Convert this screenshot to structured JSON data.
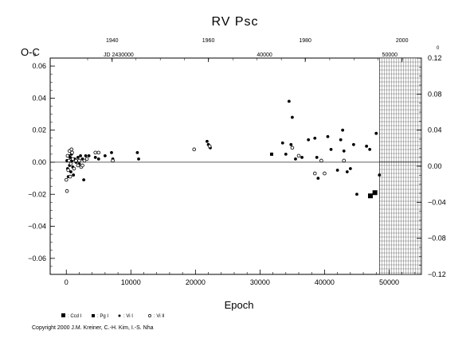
{
  "chart_data": {
    "type": "scatter",
    "title": "RV Psc",
    "ylabel": "O-C",
    "xlabel": "Epoch",
    "xlim": [
      -2500,
      55000
    ],
    "ylim": [
      -0.07,
      0.065
    ],
    "y2lim": [
      -0.12,
      0.12
    ],
    "grid": false,
    "x_ticks": [
      0,
      10000,
      20000,
      30000,
      40000,
      50000
    ],
    "x_tick_labels": [
      "0",
      "10000",
      "20000",
      "30000",
      "40000",
      "50000"
    ],
    "y_ticks": [
      -0.06,
      -0.04,
      -0.02,
      0.0,
      0.02,
      0.04,
      0.06
    ],
    "y_tick_labels": [
      "−0.06",
      "−0.04",
      "−0.02",
      "0.00",
      "0.02",
      "0.04",
      "0.06"
    ],
    "y2_ticks": [
      -0.12,
      -0.08,
      -0.04,
      0.0,
      0.04,
      0.08,
      0.12
    ],
    "y2_tick_labels": [
      "−0.12",
      "−0.08",
      "−0.04",
      "0.00",
      "0.04",
      "0.08",
      "0.12"
    ],
    "top_year_ticks": [
      {
        "label": "1940",
        "epoch": 7100
      },
      {
        "label": "1960",
        "epoch": 22000
      },
      {
        "label": "1980",
        "epoch": 37000
      },
      {
        "label": "2000",
        "epoch": 52000
      }
    ],
    "top_jd_ticks": [
      {
        "label": "JD 2430000",
        "epoch": 8100
      },
      {
        "label": "40000",
        "epoch": 30700
      },
      {
        "label": "50000",
        "epoch": 50100
      }
    ],
    "top_corner_labels": {
      "left": "0",
      "right": "0"
    },
    "future_region_start_epoch": 48500,
    "legend": [
      {
        "marker": "square",
        "label": ": Ccd I"
      },
      {
        "marker": "square-small",
        "label": ": Pg I"
      },
      {
        "marker": "dot",
        "label": ": Vi I"
      },
      {
        "marker": "circle",
        "label": ": Vi II"
      }
    ],
    "series": [
      {
        "name": "Ccd I",
        "marker": "square",
        "points": [
          [
            47100,
            -0.021
          ],
          [
            47800,
            -0.019
          ]
        ]
      },
      {
        "name": "Pg I",
        "marker": "square-small",
        "points": [
          [
            31800,
            0.005
          ]
        ]
      },
      {
        "name": "Vi I",
        "marker": "dot",
        "points": [
          [
            100,
            0.001
          ],
          [
            200,
            -0.004
          ],
          [
            300,
            -0.009
          ],
          [
            400,
            0.004
          ],
          [
            500,
            -0.002
          ],
          [
            600,
            0.003
          ],
          [
            700,
            -0.006
          ],
          [
            800,
            0.005
          ],
          [
            900,
            0.001
          ],
          [
            1000,
            -0.003
          ],
          [
            1100,
            -0.008
          ],
          [
            1300,
            0.002
          ],
          [
            1500,
            0.0
          ],
          [
            1800,
            0.003
          ],
          [
            2000,
            -0.001
          ],
          [
            2200,
            0.004
          ],
          [
            2500,
            0.002
          ],
          [
            2700,
            -0.011
          ],
          [
            3000,
            0.004
          ],
          [
            3500,
            0.004
          ],
          [
            4500,
            0.003
          ],
          [
            5000,
            0.002
          ],
          [
            6000,
            0.004
          ],
          [
            7000,
            0.006
          ],
          [
            7200,
            0.002
          ],
          [
            11000,
            0.006
          ],
          [
            11200,
            0.002
          ],
          [
            21800,
            0.013
          ],
          [
            22000,
            0.011
          ],
          [
            22300,
            0.009
          ],
          [
            33500,
            0.012
          ],
          [
            34000,
            0.005
          ],
          [
            34500,
            0.038
          ],
          [
            34800,
            0.011
          ],
          [
            35000,
            0.028
          ],
          [
            35500,
            0.002
          ],
          [
            36500,
            0.003
          ],
          [
            37500,
            0.014
          ],
          [
            38500,
            0.015
          ],
          [
            38800,
            0.003
          ],
          [
            39000,
            -0.01
          ],
          [
            40500,
            0.016
          ],
          [
            41000,
            0.008
          ],
          [
            42000,
            -0.005
          ],
          [
            42500,
            0.014
          ],
          [
            42800,
            0.02
          ],
          [
            43000,
            0.007
          ],
          [
            43500,
            -0.006
          ],
          [
            44000,
            -0.004
          ],
          [
            44500,
            0.011
          ],
          [
            45000,
            -0.02
          ],
          [
            46500,
            0.01
          ],
          [
            47000,
            0.008
          ],
          [
            48000,
            0.018
          ],
          [
            48500,
            -0.008
          ]
        ]
      },
      {
        "name": "Vi II",
        "marker": "circle",
        "points": [
          [
            0,
            -0.011
          ],
          [
            100,
            -0.018
          ],
          [
            200,
            0.004
          ],
          [
            300,
            -0.005
          ],
          [
            400,
            0.001
          ],
          [
            500,
            0.007
          ],
          [
            600,
            -0.009
          ],
          [
            700,
            -0.001
          ],
          [
            800,
            0.008
          ],
          [
            900,
            0.006
          ],
          [
            1000,
            0.002
          ],
          [
            1200,
            -0.004
          ],
          [
            1500,
            0.001
          ],
          [
            1800,
            -0.002
          ],
          [
            2000,
            0.001
          ],
          [
            2300,
            -0.003
          ],
          [
            2500,
            -0.002
          ],
          [
            2800,
            0.001
          ],
          [
            3200,
            0.002
          ],
          [
            4500,
            0.006
          ],
          [
            5000,
            0.006
          ],
          [
            7200,
            0.001
          ],
          [
            19800,
            0.008
          ],
          [
            22200,
            0.01
          ],
          [
            35000,
            0.009
          ],
          [
            36000,
            0.004
          ],
          [
            38500,
            -0.007
          ],
          [
            39500,
            0.001
          ],
          [
            40000,
            -0.007
          ],
          [
            43000,
            0.001
          ]
        ]
      }
    ]
  },
  "copyright": "Copyright 2000 J.M. Kreiner, C.-H. Kim, I.-S. Nha"
}
